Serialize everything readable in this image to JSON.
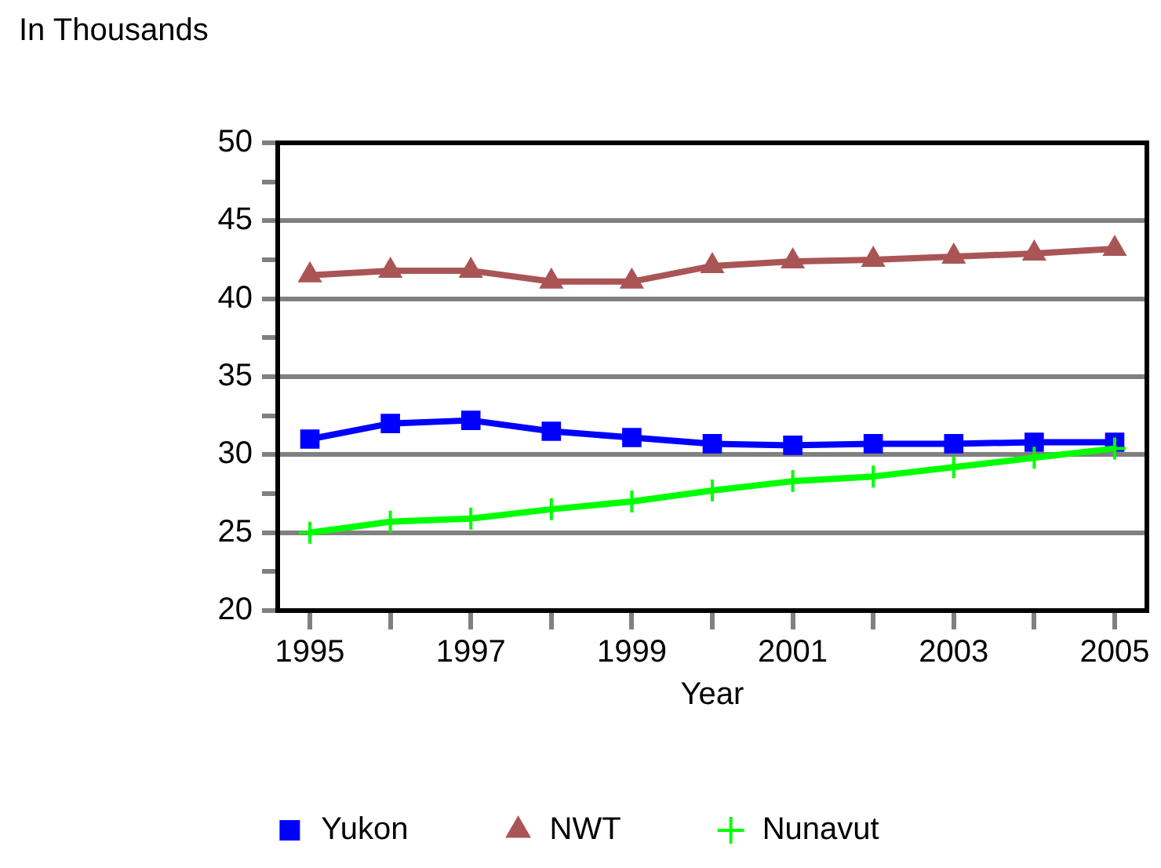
{
  "chart_data": {
    "type": "line",
    "ylabel": "In Thousands",
    "xlabel": "Year",
    "x": [
      1995,
      1996,
      1997,
      1998,
      1999,
      2000,
      2001,
      2002,
      2003,
      2004,
      2005
    ],
    "xlim": [
      1994.6,
      2005.4
    ],
    "xticks": [
      1995,
      {
        "value": 1996,
        "label": null
      },
      1997,
      {
        "value": 1998,
        "label": null
      },
      1999,
      {
        "value": 2000,
        "label": null
      },
      2001,
      {
        "value": 2002,
        "label": null
      },
      2003,
      {
        "value": 2004,
        "label": null
      },
      2005
    ],
    "ylim": [
      20,
      50
    ],
    "yticks": [
      20,
      {
        "value": 22.5,
        "label": null
      },
      25,
      {
        "value": 27.5,
        "label": null
      },
      30,
      {
        "value": 32.5,
        "label": null
      },
      35,
      {
        "value": 37.5,
        "label": null
      },
      40,
      {
        "value": 42.5,
        "label": null
      },
      45,
      {
        "value": 47.5,
        "label": null
      },
      50
    ],
    "grid": "y",
    "legend": "bottom",
    "line_style": "solid",
    "series": [
      {
        "name": "Yukon",
        "color": "#0000ff",
        "marker": "square",
        "values": [
          31.0,
          32.0,
          32.2,
          31.5,
          31.1,
          30.7,
          30.6,
          30.7,
          30.7,
          30.8,
          30.8
        ]
      },
      {
        "name": "NWT",
        "color": "#aa5555",
        "marker": "triangle",
        "values": [
          41.5,
          41.8,
          41.8,
          41.1,
          41.1,
          42.1,
          42.4,
          42.5,
          42.7,
          42.9,
          43.2
        ]
      },
      {
        "name": "Nunavut",
        "color": "#00ff00",
        "marker": "cross",
        "values": [
          25.0,
          25.7,
          25.9,
          26.5,
          27.0,
          27.7,
          28.3,
          28.6,
          29.2,
          29.8,
          30.4
        ]
      }
    ]
  }
}
